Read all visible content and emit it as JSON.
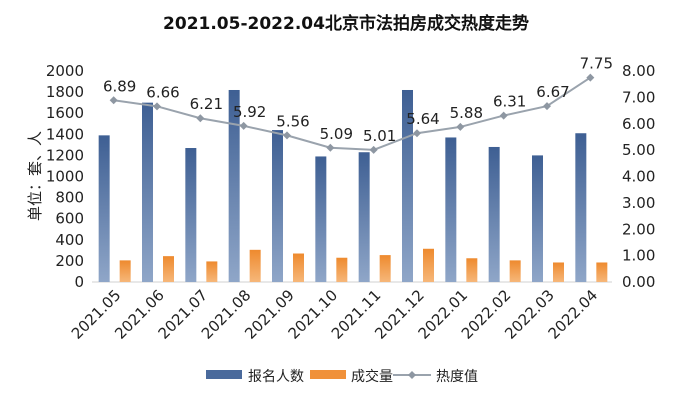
{
  "chart_data": {
    "type": "bar",
    "title": "2021.05-2022.04北京市法拍房成交热度走势",
    "ylabel": "单位：套、人",
    "categories": [
      "2021.05",
      "2021.06",
      "2021.07",
      "2021.08",
      "2021.09",
      "2021.10",
      "2021.11",
      "2021.12",
      "2022.01",
      "2022.02",
      "2022.03",
      "2022.04"
    ],
    "ylim": [
      0,
      2000
    ],
    "y2lim": [
      0,
      8
    ],
    "yticks": [
      "0",
      "200",
      "400",
      "600",
      "800",
      "1000",
      "1200",
      "1400",
      "1600",
      "1800",
      "2000"
    ],
    "y2ticks": [
      "0.00",
      "1.00",
      "2.00",
      "3.00",
      "4.00",
      "5.00",
      "6.00",
      "7.00",
      "8.00"
    ],
    "grid": false,
    "legend_position": "bottom",
    "series": [
      {
        "name": "报名人数",
        "type": "bar",
        "axis": "left",
        "color": "#4a6a9c",
        "values": [
          1390,
          1700,
          1270,
          1820,
          1440,
          1190,
          1230,
          1820,
          1370,
          1280,
          1200,
          1410
        ]
      },
      {
        "name": "成交量",
        "type": "bar",
        "axis": "left",
        "color": "#f0913a",
        "values": [
          205,
          245,
          195,
          305,
          270,
          230,
          255,
          315,
          225,
          205,
          185,
          185
        ]
      },
      {
        "name": "热度值",
        "type": "line",
        "axis": "right",
        "color": "#9aa3ad",
        "values": [
          6.89,
          6.66,
          6.21,
          5.92,
          5.56,
          5.09,
          5.01,
          5.64,
          5.88,
          6.31,
          6.67,
          7.75
        ],
        "labels": [
          "6.89",
          "6.66",
          "6.21",
          "5.92",
          "5.56",
          "5.09",
          "5.01",
          "5.64",
          "5.88",
          "6.31",
          "6.67",
          "7.75"
        ]
      }
    ]
  }
}
